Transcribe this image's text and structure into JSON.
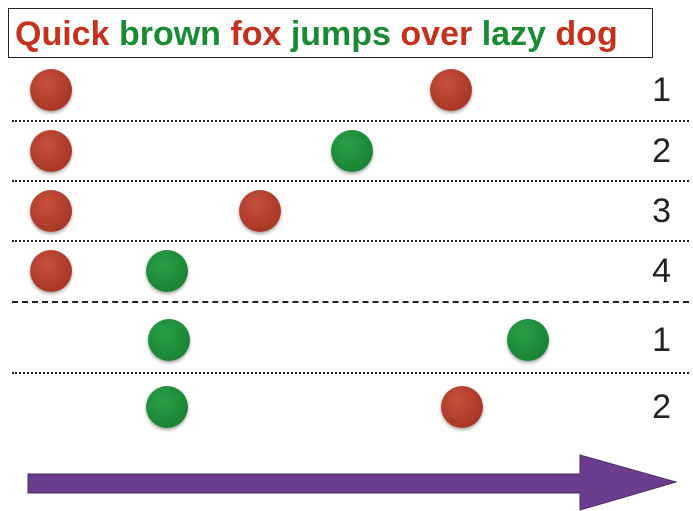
{
  "title": {
    "words": [
      {
        "text": "Quick",
        "color": "#c2321f"
      },
      {
        "text": "brown",
        "color": "#1a8a35"
      },
      {
        "text": "fox",
        "color": "#c2321f"
      },
      {
        "text": "jumps",
        "color": "#1a8a35"
      },
      {
        "text": "over",
        "color": "#c2321f"
      },
      {
        "text": "lazy",
        "color": "#1a8a35"
      },
      {
        "text": "dog",
        "color": "#c2321f"
      }
    ]
  },
  "colors": {
    "red": "#b03b2a",
    "green": "#1f8f3e",
    "arrow": "#6b3d8f"
  },
  "rows": [
    {
      "label": "1",
      "dots": [
        "red",
        "red"
      ]
    },
    {
      "label": "2",
      "dots": [
        "red",
        "green"
      ]
    },
    {
      "label": "3",
      "dots": [
        "red",
        "red"
      ]
    },
    {
      "label": "4",
      "dots": [
        "red",
        "green"
      ]
    },
    {
      "label": "1",
      "dots": [
        "green",
        "green"
      ]
    },
    {
      "label": "2",
      "dots": [
        "green",
        "red"
      ]
    }
  ],
  "dividers": [
    "dotted",
    "dotted",
    "dotted",
    "dashed",
    "dotted"
  ],
  "arrow": {
    "direction": "right"
  }
}
